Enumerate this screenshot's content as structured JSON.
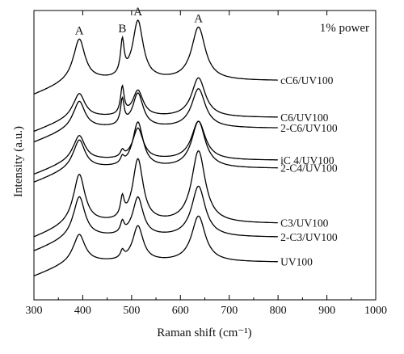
{
  "chart_data": {
    "type": "line",
    "title": "",
    "annotation": "1% power",
    "xlabel": "Raman shift (cm⁻¹)",
    "ylabel": "Intensity (a.u.)",
    "xlim": [
      300,
      1000
    ],
    "xticks": [
      300,
      400,
      500,
      600,
      700,
      800,
      900,
      1000
    ],
    "yticks_shown": false,
    "grid": false,
    "legend": "none",
    "peak_labels": [
      {
        "text": "A",
        "x": 393
      },
      {
        "text": "B",
        "x": 481
      },
      {
        "text": "A",
        "x": 513
      },
      {
        "text": "A",
        "x": 637
      }
    ],
    "series": [
      {
        "name": "cC6/UV100",
        "baseline": 0.757,
        "peaks": [
          0.141,
          0.117,
          0.202,
          0.183
        ]
      },
      {
        "name": "C6/UV100",
        "baseline": 0.63,
        "peaks": [
          0.081,
          0.095,
          0.09,
          0.136
        ]
      },
      {
        "name": "2-C6/UV100",
        "baseline": 0.593,
        "peaks": [
          0.091,
          0.087,
          0.117,
          0.135
        ]
      },
      {
        "name": "iC 4/UV100",
        "baseline": 0.482,
        "peaks": [
          0.084,
          0.022,
          0.108,
          0.134
        ]
      },
      {
        "name": "2-C4/UV100",
        "baseline": 0.454,
        "peaks": [
          0.096,
          0.022,
          0.156,
          0.161
        ]
      },
      {
        "name": "C3/UV100",
        "baseline": 0.263,
        "peaks": [
          0.167,
          0.066,
          0.217,
          0.249
        ]
      },
      {
        "name": "2-C3/UV100",
        "baseline": 0.216,
        "peaks": [
          0.138,
          0.038,
          0.134,
          0.175
        ]
      },
      {
        "name": "UV100",
        "baseline": 0.13,
        "peaks": [
          0.094,
          0.026,
          0.122,
          0.158
        ]
      }
    ]
  }
}
